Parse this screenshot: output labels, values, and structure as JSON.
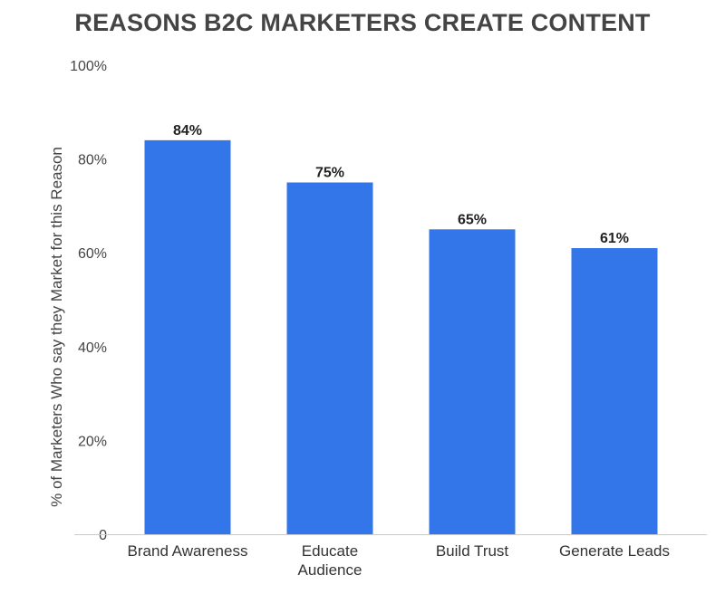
{
  "chart_data": {
    "type": "bar",
    "title": "REASONS B2C MARKETERS CREATE CONTENT",
    "xlabel": "",
    "ylabel": "% of Marketers Who say they Market for this Reason",
    "categories": [
      "Brand Awareness",
      "Educate Audience",
      "Build Trust",
      "Generate Leads"
    ],
    "category_lines": [
      [
        "Brand Awareness"
      ],
      [
        "Educate",
        "Audience"
      ],
      [
        "Build Trust"
      ],
      [
        "Generate Leads"
      ]
    ],
    "values": [
      84,
      75,
      65,
      61
    ],
    "value_labels": [
      "84%",
      "75%",
      "65%",
      "61%"
    ],
    "ylim": [
      0,
      100
    ],
    "yticks": [
      0,
      20,
      40,
      60,
      80,
      100
    ],
    "ytick_labels": [
      "0",
      "20%",
      "40%",
      "60%",
      "80%",
      "100%"
    ],
    "grid": false,
    "legend": "none",
    "bar_color": "#3376ea"
  }
}
